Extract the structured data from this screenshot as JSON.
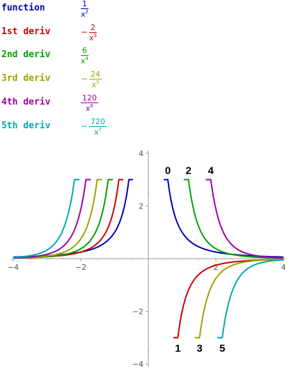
{
  "rows": [
    {
      "label": "function",
      "sign": "",
      "numerator": "1",
      "den_base": "x",
      "den_exp": "2",
      "color": "#0000b4"
    },
    {
      "label": "1st deriv",
      "sign": "−",
      "numerator": "2",
      "den_base": "x",
      "den_exp": "3",
      "color": "#cc0000"
    },
    {
      "label": "2nd deriv",
      "sign": "",
      "numerator": "6",
      "den_base": "x",
      "den_exp": "4",
      "color": "#00a000"
    },
    {
      "label": "3rd deriv",
      "sign": "−",
      "numerator": "24",
      "den_base": "x",
      "den_exp": "5",
      "color": "#a0a000"
    },
    {
      "label": "4th deriv",
      "sign": "",
      "numerator": "120",
      "den_base": "x",
      "den_exp": "6",
      "color": "#a000a8"
    },
    {
      "label": "5th deriv",
      "sign": "−",
      "numerator": "720",
      "den_base": "x",
      "den_exp": "7",
      "color": "#00a8b4"
    }
  ],
  "chart_data": {
    "type": "line",
    "title": "",
    "xlabel": "",
    "ylabel": "",
    "xlim": [
      -4,
      4
    ],
    "ylim": [
      -4,
      4
    ],
    "grid": false,
    "x_ticks": [
      -4,
      -2,
      2,
      4
    ],
    "x_tick_labels": [
      "−4",
      "−2",
      "2",
      "4"
    ],
    "y_ticks": [
      -4,
      -2,
      2,
      4
    ],
    "y_tick_labels": [
      "−4",
      "−2",
      "2",
      "4"
    ],
    "series": [
      {
        "name": "0",
        "expr": "1/x^2",
        "coef": 1,
        "power": -2,
        "color": "#0000b4"
      },
      {
        "name": "1",
        "expr": "-2/x^3",
        "coef": -2,
        "power": -3,
        "color": "#cc0000"
      },
      {
        "name": "2",
        "expr": "6/x^4",
        "coef": 6,
        "power": -4,
        "color": "#00a000"
      },
      {
        "name": "3",
        "expr": "-24/x^5",
        "coef": -24,
        "power": -5,
        "color": "#a0a000"
      },
      {
        "name": "4",
        "expr": "120/x^6",
        "coef": 120,
        "power": -6,
        "color": "#a000a8"
      },
      {
        "name": "5",
        "expr": "-720/x^7",
        "coef": -720,
        "power": -7,
        "color": "#00a8b4"
      }
    ],
    "annotations": [
      "0",
      "2",
      "4",
      "1",
      "3",
      "5"
    ]
  }
}
